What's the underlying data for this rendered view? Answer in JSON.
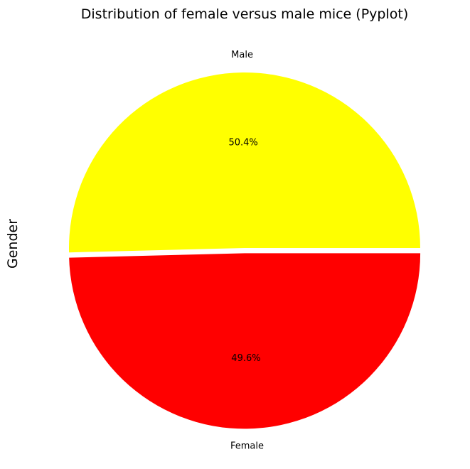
{
  "chart_data": {
    "type": "pie",
    "title": "Distribution of female versus male mice (Pyplot)",
    "ylabel": "Gender",
    "slices": [
      {
        "label": "Male",
        "value": 50.4,
        "percent_label": "50.4%",
        "color": "#ffff00"
      },
      {
        "label": "Female",
        "value": 49.6,
        "percent_label": "49.6%",
        "color": "#ff0000"
      }
    ],
    "explode": [
      0,
      0.03
    ],
    "startangle_deg": 0,
    "legend": false,
    "grid": false
  }
}
